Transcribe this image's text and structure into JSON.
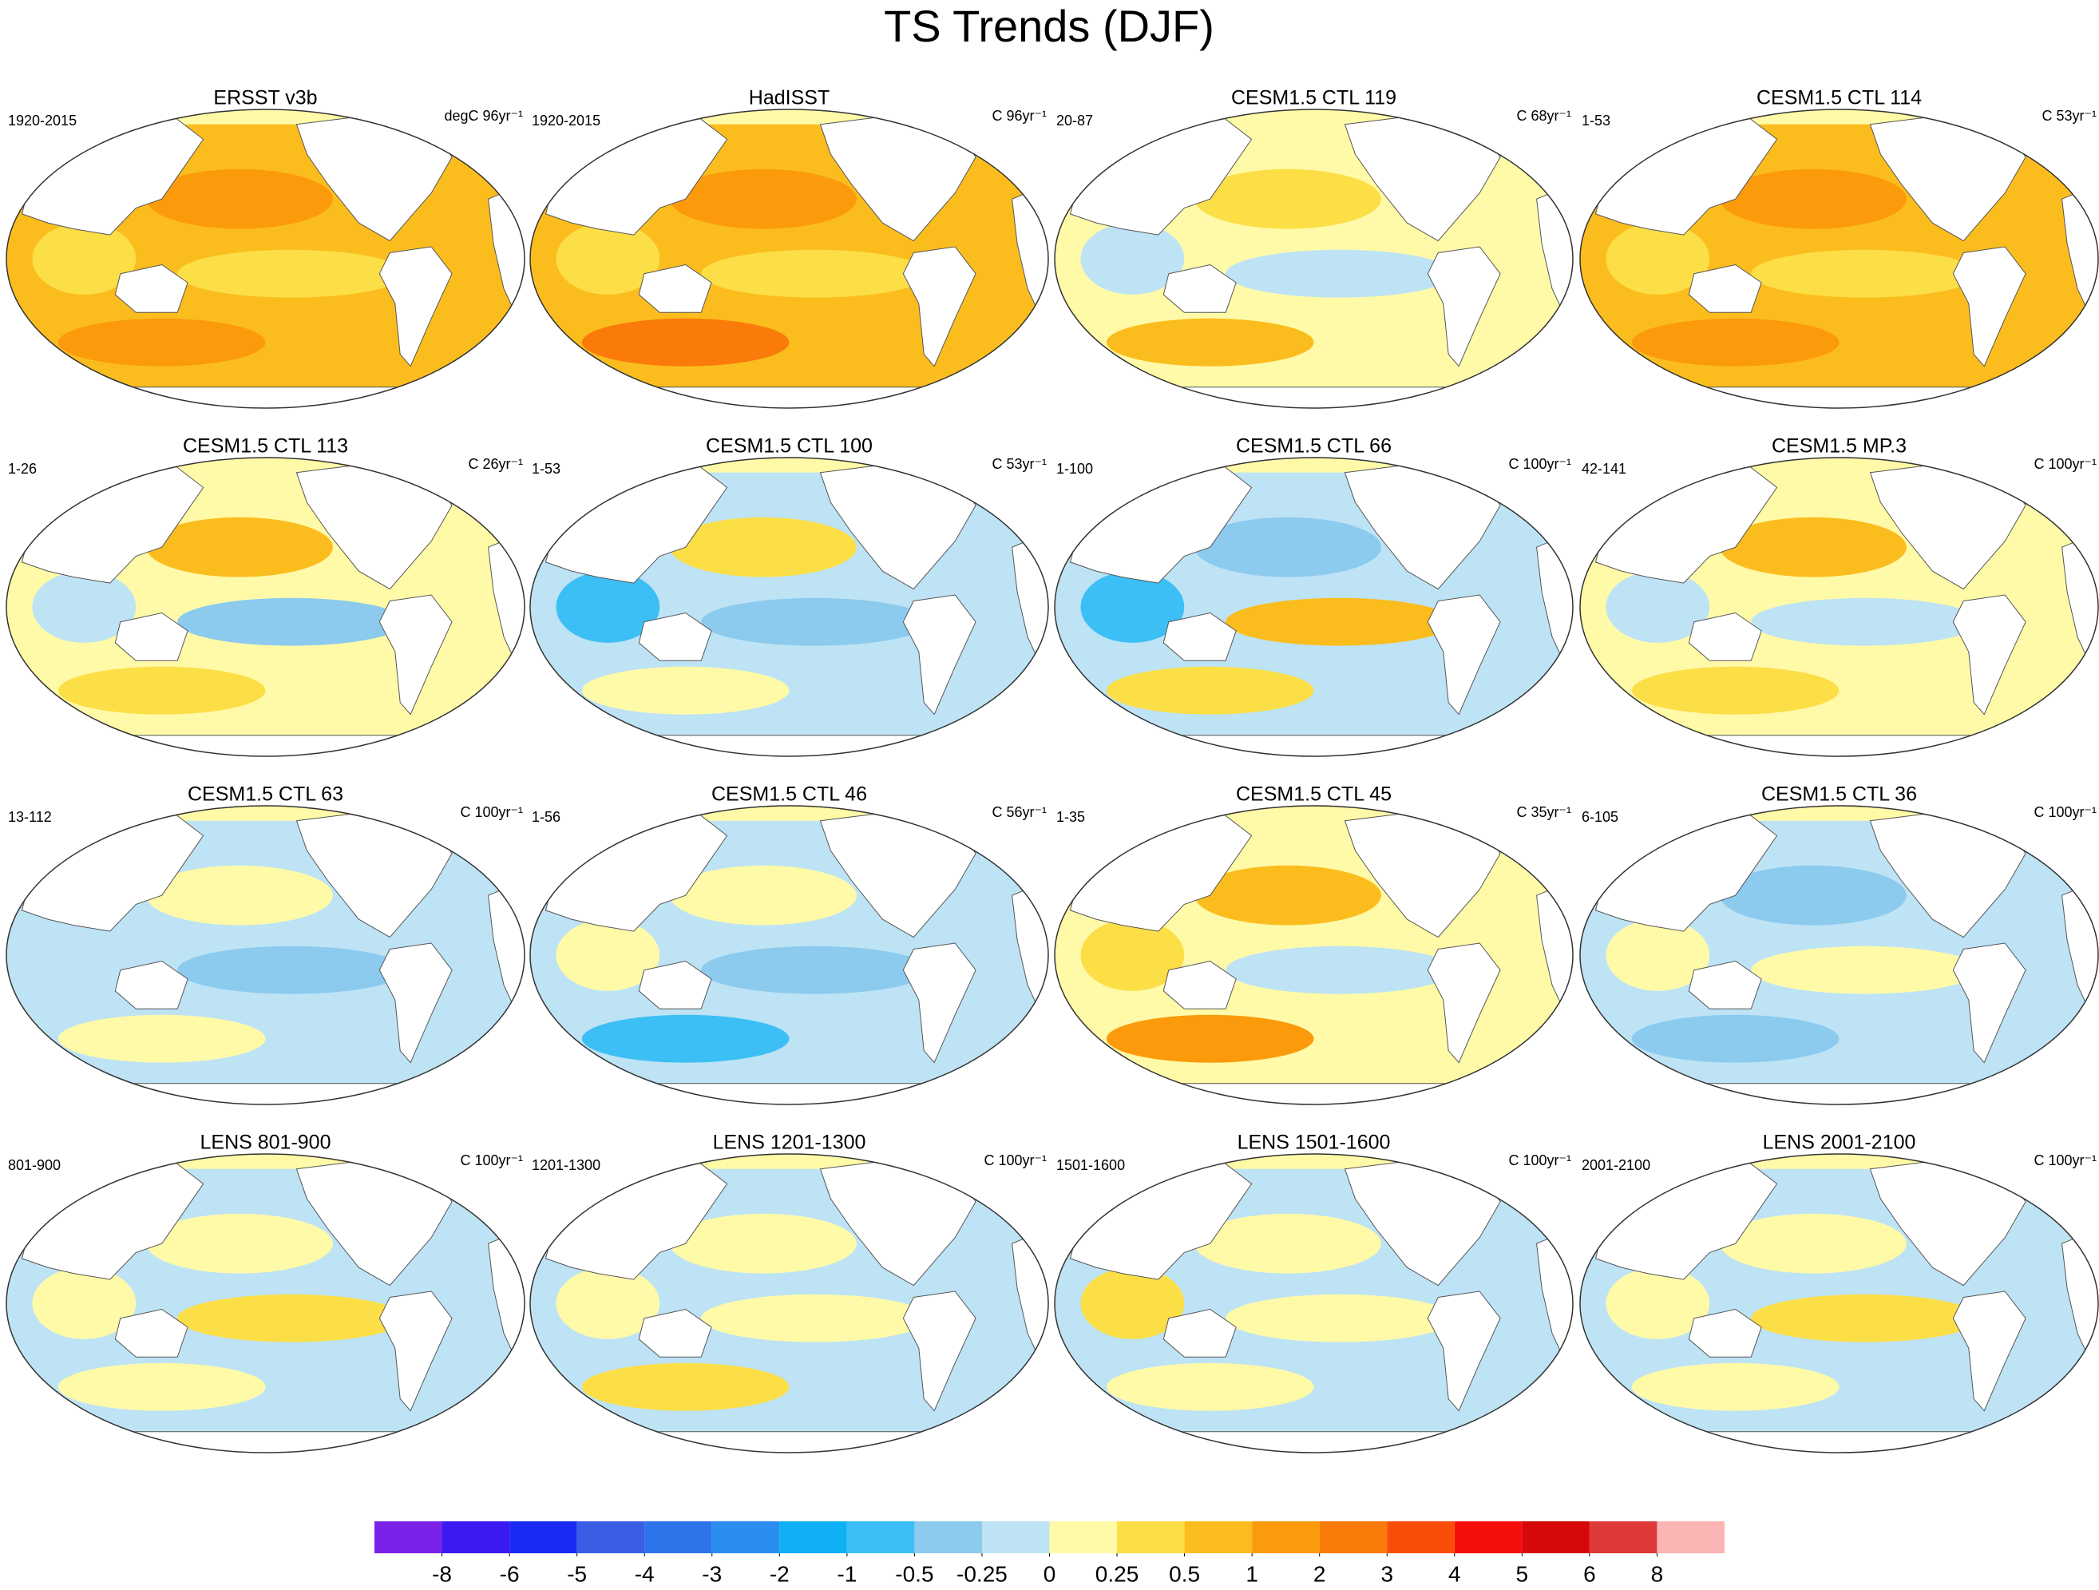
{
  "title": "TS Trends (DJF)",
  "panels": [
    {
      "title": "ERSST v3b",
      "period": "1920-2015",
      "units": "degC 96yr⁻¹"
    },
    {
      "title": "HadISST",
      "period": "1920-2015",
      "units": "C 96yr⁻¹"
    },
    {
      "title": "CESM1.5 CTL 119",
      "period": "20-87",
      "units": "C 68yr⁻¹"
    },
    {
      "title": "CESM1.5 CTL 114",
      "period": "1-53",
      "units": "C 53yr⁻¹"
    },
    {
      "title": "CESM1.5 CTL 113",
      "period": "1-26",
      "units": "C 26yr⁻¹"
    },
    {
      "title": "CESM1.5 CTL 100",
      "period": "1-53",
      "units": "C 53yr⁻¹"
    },
    {
      "title": "CESM1.5 CTL 66",
      "period": "1-100",
      "units": "C 100yr⁻¹"
    },
    {
      "title": "CESM1.5 MP.3",
      "period": "42-141",
      "units": "C 100yr⁻¹"
    },
    {
      "title": "CESM1.5 CTL 63",
      "period": "13-112",
      "units": "C 100yr⁻¹"
    },
    {
      "title": "CESM1.5 CTL 46",
      "period": "1-56",
      "units": "C 56yr⁻¹"
    },
    {
      "title": "CESM1.5 CTL 45",
      "period": "1-35",
      "units": "C 35yr⁻¹"
    },
    {
      "title": "CESM1.5 CTL 36",
      "period": "6-105",
      "units": "C 100yr⁻¹"
    },
    {
      "title": "LENS 801-900",
      "period": "801-900",
      "units": "C 100yr⁻¹"
    },
    {
      "title": "LENS 1201-1300",
      "period": "1201-1300",
      "units": "C 100yr⁻¹"
    },
    {
      "title": "LENS 1501-1600",
      "period": "1501-1600",
      "units": "C 100yr⁻¹"
    },
    {
      "title": "LENS 2001-2100",
      "period": "2001-2100",
      "units": "C 100yr⁻¹"
    }
  ],
  "colorbar": {
    "levels": [
      -8,
      -6,
      -5,
      -4,
      -3,
      -2,
      -1,
      -0.5,
      -0.25,
      0,
      0.25,
      0.5,
      1,
      2,
      3,
      4,
      5,
      6,
      8
    ],
    "colors": [
      "#7b22e8",
      "#3a1af0",
      "#1a2af5",
      "#3c5ee6",
      "#2d74ea",
      "#2a8df0",
      "#10b0f5",
      "#3cbff5",
      "#8ccaee",
      "#bde3f5",
      "#fffaa8",
      "#fcde46",
      "#fbbd1e",
      "#fb9b0c",
      "#fa7a0a",
      "#fa4d0a",
      "#f50f0a",
      "#d6080a",
      "#de3a3a",
      "#fbb4b4"
    ]
  }
}
